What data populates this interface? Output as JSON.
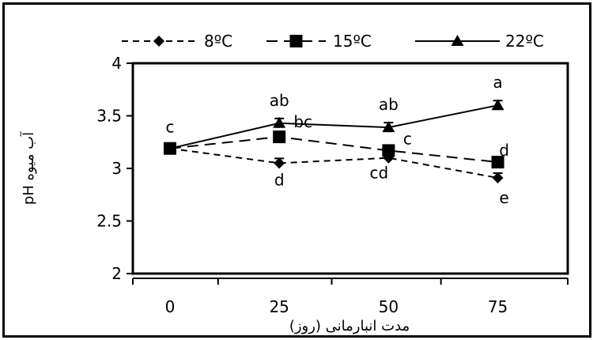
{
  "chart_data": {
    "type": "line",
    "title": "",
    "xlabel": "مدت انبارمانی (روز)",
    "ylabel": "pH آب میوه",
    "x": [
      0,
      25,
      50,
      75
    ],
    "xlim": [
      -8.5,
      91
    ],
    "ylim": [
      2,
      4
    ],
    "yticks": [
      2,
      2.5,
      3,
      3.5,
      4
    ],
    "ytick_labels": [
      "2",
      "2.5",
      "3",
      "3.5",
      "4"
    ],
    "grid": false,
    "legend_position": "top",
    "series": [
      {
        "name": "8ºC",
        "marker": "diamond",
        "line_style": "dashed",
        "values": [
          3.19,
          3.05,
          3.1,
          2.91
        ],
        "labels": [
          "",
          "d",
          "cd",
          "e"
        ]
      },
      {
        "name": "15ºC",
        "marker": "square",
        "line_style": "long-dashed",
        "values": [
          3.19,
          3.3,
          3.17,
          3.06
        ],
        "labels": [
          "",
          "bc",
          "c",
          "d"
        ]
      },
      {
        "name": "22ºC",
        "marker": "triangle",
        "line_style": "solid",
        "values": [
          3.19,
          3.43,
          3.39,
          3.6
        ],
        "labels": [
          "c",
          "ab",
          "ab",
          "a"
        ]
      }
    ]
  }
}
